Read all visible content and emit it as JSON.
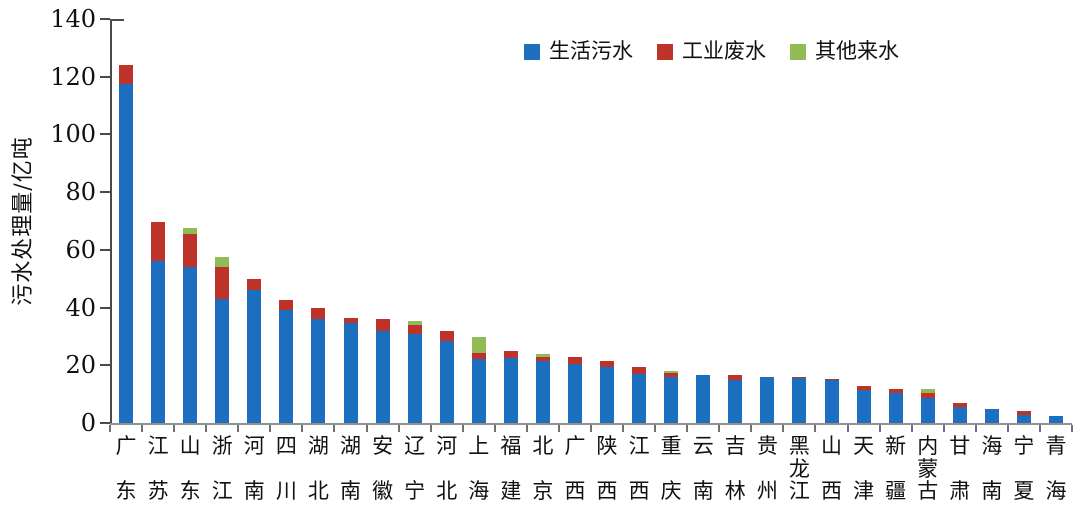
{
  "chart_data": {
    "type": "bar",
    "stacked": true,
    "title": "",
    "xlabel": "",
    "ylabel": "污水处理量/亿吨",
    "ylim": [
      0,
      140
    ],
    "yticks": [
      0,
      20,
      40,
      60,
      80,
      100,
      120,
      140
    ],
    "grid": false,
    "legend_position": "top-center",
    "categories": [
      "广东",
      "江苏",
      "山东",
      "浙江",
      "河南",
      "四川",
      "湖北",
      "湖南",
      "安徽",
      "辽宁",
      "河北",
      "上海",
      "福建",
      "北京",
      "广西",
      "陕西",
      "江西",
      "重庆",
      "云南",
      "吉林",
      "贵州",
      "黑龙江",
      "山西",
      "天津",
      "新疆",
      "内蒙古",
      "甘肃",
      "海南",
      "宁夏",
      "青海"
    ],
    "series": [
      {
        "name": "生活污水",
        "color": "#1B6FBE",
        "values": [
          117.5,
          56,
          54,
          43,
          46,
          39,
          36,
          34.5,
          32,
          31,
          28.5,
          22.3,
          22.5,
          21.5,
          20.5,
          19.5,
          17,
          16,
          16.5,
          15,
          16,
          15.5,
          14.8,
          11.5,
          10.5,
          8.5,
          5.6,
          5,
          2.8,
          2.3
        ]
      },
      {
        "name": "工业废水",
        "color": "#BE3329",
        "values": [
          6.5,
          13.5,
          11.5,
          11,
          4,
          3.5,
          4,
          2,
          4,
          3,
          3.5,
          1.8,
          2.5,
          1.5,
          2.5,
          2,
          2.5,
          1.3,
          0,
          1.5,
          0,
          0.5,
          0.5,
          1.3,
          1.2,
          1.8,
          1.2,
          0,
          1.2,
          0
        ]
      },
      {
        "name": "其他来水",
        "color": "#90BB55",
        "values": [
          0,
          0,
          2,
          3.5,
          0,
          0,
          0,
          0,
          0,
          1.5,
          0,
          5.6,
          0,
          1,
          0,
          0,
          0,
          0.8,
          0,
          0,
          0,
          0,
          0,
          0,
          0,
          1.6,
          0,
          0,
          0,
          0
        ]
      }
    ]
  }
}
